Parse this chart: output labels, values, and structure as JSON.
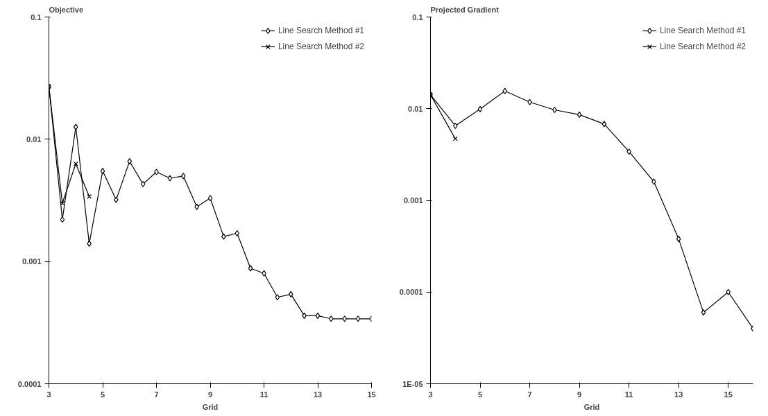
{
  "chart_data": [
    {
      "type": "line",
      "title": "Objective",
      "xlabel": "Grid",
      "log": "y",
      "grid": false,
      "legend": "top right",
      "line_style": "solid",
      "xlim": [
        3,
        15
      ],
      "xticks": [
        3,
        5,
        7,
        9,
        11,
        13,
        15
      ],
      "ylim": [
        0.0001,
        0.1
      ],
      "yticks": [
        0.0001,
        0.001,
        0.01,
        0.1
      ],
      "series": [
        {
          "name": "Line Search Method #1",
          "color": "#000000",
          "marker": "diamond",
          "x": [
            3,
            3.5,
            4,
            4.5,
            5,
            5.5,
            6,
            6.5,
            7,
            7.5,
            8,
            8.5,
            9,
            9.5,
            10,
            10.5,
            11,
            11.5,
            12,
            12.5,
            13,
            13.5,
            14,
            14.5,
            15
          ],
          "values": [
            0.027,
            0.0022,
            0.0126,
            0.0014,
            0.0055,
            0.0032,
            0.0066,
            0.0043,
            0.0054,
            0.0048,
            0.005,
            0.0028,
            0.0033,
            0.0016,
            0.0017,
            0.00088,
            0.0008,
            0.00051,
            0.00054,
            0.00036,
            0.00036,
            0.00034,
            0.00034,
            0.00034,
            0.00034
          ]
        },
        {
          "name": "Line Search Method #2",
          "color": "#000000",
          "marker": "cross",
          "x": [
            3,
            3.5,
            4,
            4.5
          ],
          "values": [
            0.027,
            0.003,
            0.0063,
            0.0034
          ]
        }
      ]
    },
    {
      "type": "line",
      "title": "Projected Gradient",
      "xlabel": "Grid",
      "log": "y",
      "grid": false,
      "legend": "top right",
      "line_style": "solid",
      "xlim": [
        3,
        16
      ],
      "xticks": [
        3,
        5,
        7,
        9,
        11,
        13,
        15
      ],
      "ylim": [
        1e-05,
        0.1
      ],
      "yticks": [
        {
          "value": 1e-05,
          "label": "1E-05"
        },
        0.0001,
        0.001,
        0.01,
        0.1
      ],
      "series": [
        {
          "name": "Line Search Method #1",
          "color": "#000000",
          "marker": "diamond",
          "x": [
            3,
            4,
            5,
            6,
            7,
            8,
            9,
            10,
            11,
            12,
            13,
            14,
            15,
            16
          ],
          "values": [
            0.0142,
            0.0065,
            0.0099,
            0.0156,
            0.0118,
            0.0097,
            0.0086,
            0.0068,
            0.0034,
            0.0016,
            0.00038,
            6e-05,
            0.0001,
            4e-05
          ]
        },
        {
          "name": "Line Search Method #2",
          "color": "#000000",
          "marker": "cross",
          "x": [
            3,
            4
          ],
          "values": [
            0.0142,
            0.0047
          ]
        }
      ]
    }
  ]
}
